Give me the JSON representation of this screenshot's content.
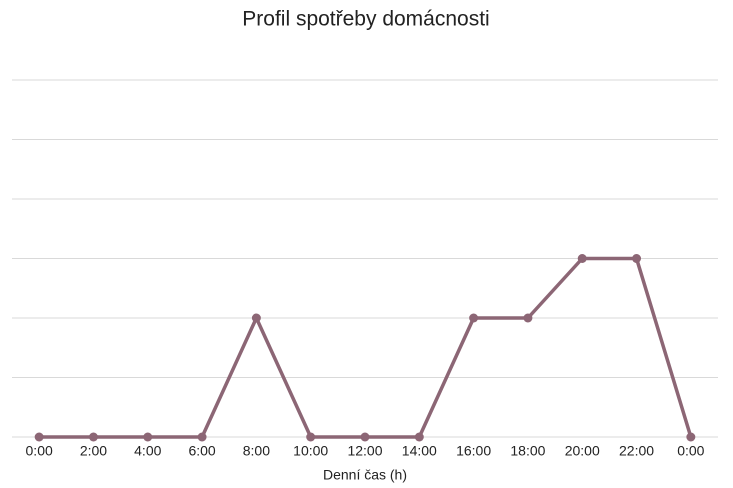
{
  "chart_data": {
    "type": "line",
    "title": "Profil spotřeby domácnosti",
    "x_label": "Denní čas (h)",
    "categories": [
      "0:00",
      "2:00",
      "4:00",
      "6:00",
      "8:00",
      "10:00",
      "12:00",
      "14:00",
      "16:00",
      "18:00",
      "20:00",
      "22:00",
      "0:00"
    ],
    "values": [
      0,
      0,
      0,
      0,
      2,
      0,
      0,
      0,
      2,
      2,
      3,
      3,
      0
    ],
    "color": "#8c6675",
    "ylim": [
      0,
      6
    ],
    "yticks": [
      0,
      1,
      2,
      3,
      4,
      5,
      6
    ],
    "grid": true
  }
}
